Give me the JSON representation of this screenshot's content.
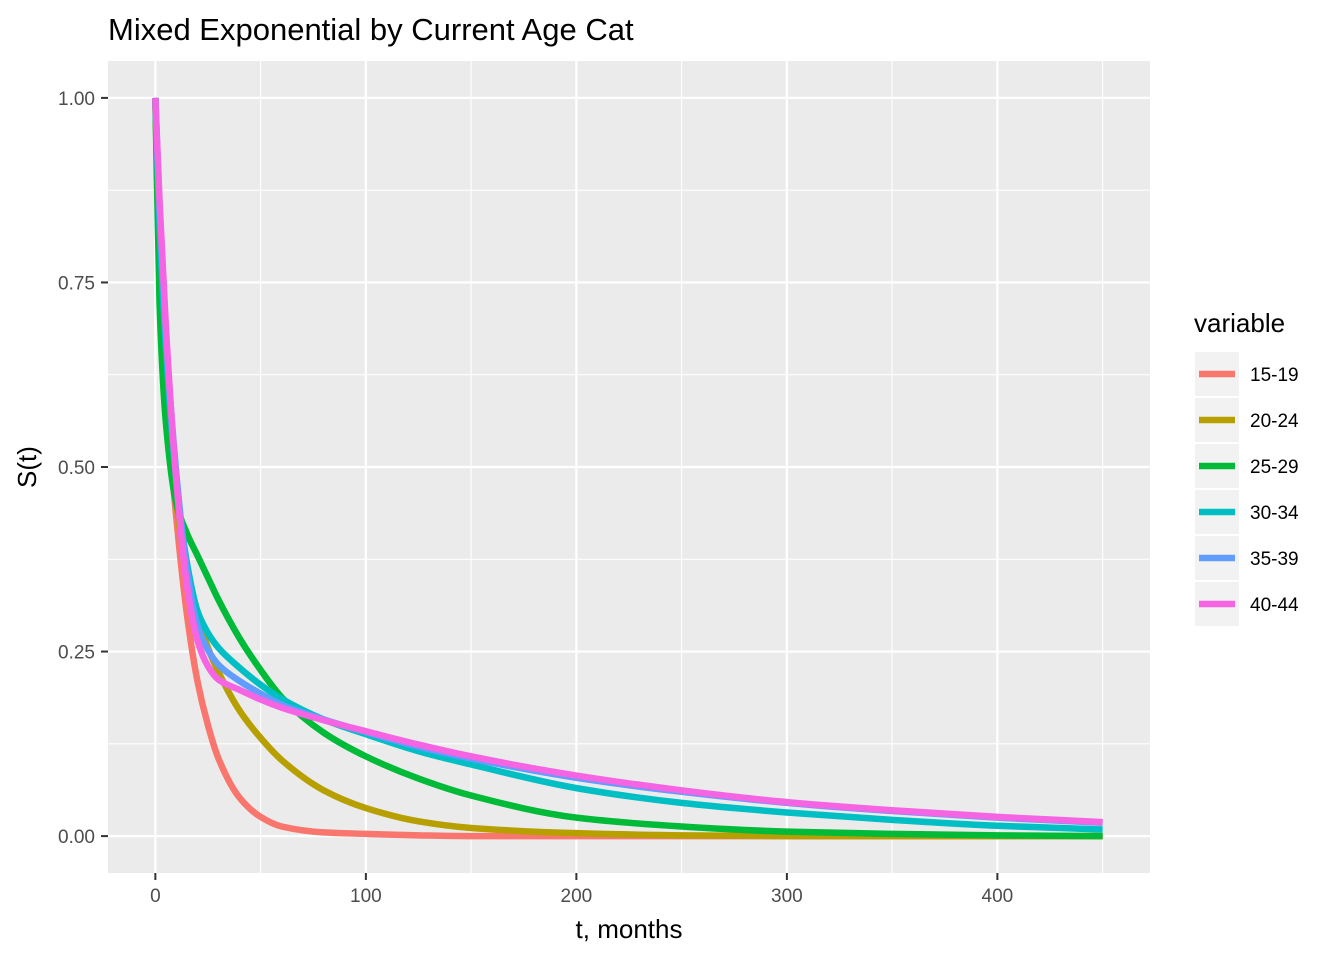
{
  "chart_data": {
    "type": "line",
    "title": "Mixed Exponential by Current Age Cat",
    "xlabel": "t, months",
    "ylabel": "S(t)",
    "xlim": [
      -22.5,
      472.5
    ],
    "ylim": [
      -0.05,
      1.05
    ],
    "x_ticks": [
      0,
      100,
      200,
      300,
      400
    ],
    "x_tick_labels": [
      "0",
      "100",
      "200",
      "300",
      "400"
    ],
    "y_ticks": [
      0,
      0.25,
      0.5,
      0.75,
      1
    ],
    "y_tick_labels": [
      "0.00",
      "0.25",
      "0.50",
      "0.75",
      "1.00"
    ],
    "grid": true,
    "legend": {
      "title": "variable",
      "position": "right"
    },
    "x": [
      0,
      2,
      5,
      10,
      15,
      20,
      25,
      30,
      40,
      50,
      60,
      80,
      100,
      125,
      150,
      200,
      250,
      300,
      350,
      400,
      450
    ],
    "series": [
      {
        "name": "15-19",
        "color": "#F8766D",
        "values": [
          1.0,
          0.78,
          0.6,
          0.43,
          0.3,
          0.21,
          0.15,
          0.105,
          0.052,
          0.026,
          0.013,
          0.005,
          0.003,
          0.001,
          0.0,
          0.0,
          0.0,
          0.0,
          0.0,
          0.0,
          0.0
        ]
      },
      {
        "name": "20-24",
        "color": "#B79F00",
        "values": [
          1.0,
          0.76,
          0.6,
          0.45,
          0.36,
          0.3,
          0.255,
          0.222,
          0.17,
          0.133,
          0.103,
          0.062,
          0.038,
          0.02,
          0.011,
          0.004,
          0.001,
          0.0,
          0.0,
          0.0,
          0.0
        ]
      },
      {
        "name": "25-29",
        "color": "#00BA38",
        "values": [
          1.0,
          0.72,
          0.56,
          0.45,
          0.41,
          0.38,
          0.35,
          0.32,
          0.268,
          0.225,
          0.188,
          0.14,
          0.108,
          0.078,
          0.055,
          0.025,
          0.013,
          0.006,
          0.003,
          0.001,
          0.0
        ]
      },
      {
        "name": "30-34",
        "color": "#00BFC4",
        "values": [
          1.0,
          0.83,
          0.66,
          0.48,
          0.37,
          0.305,
          0.275,
          0.255,
          0.228,
          0.205,
          0.186,
          0.158,
          0.138,
          0.115,
          0.097,
          0.065,
          0.045,
          0.032,
          0.022,
          0.014,
          0.009
        ]
      },
      {
        "name": "35-39",
        "color": "#619CFF",
        "values": [
          1.0,
          0.85,
          0.68,
          0.49,
          0.36,
          0.285,
          0.252,
          0.232,
          0.21,
          0.193,
          0.178,
          0.158,
          0.141,
          0.121,
          0.105,
          0.079,
          0.06,
          0.045,
          0.034,
          0.025,
          0.018
        ]
      },
      {
        "name": "40-44",
        "color": "#F564E3",
        "values": [
          1.0,
          0.86,
          0.69,
          0.48,
          0.34,
          0.265,
          0.23,
          0.212,
          0.198,
          0.185,
          0.174,
          0.157,
          0.142,
          0.124,
          0.108,
          0.082,
          0.062,
          0.046,
          0.035,
          0.026,
          0.019
        ]
      }
    ]
  }
}
